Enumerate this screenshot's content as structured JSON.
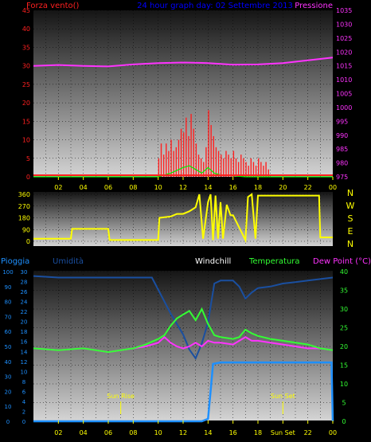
{
  "colors": {
    "background": "#000000",
    "wind": "#ff2020",
    "gust": "#00ee00",
    "pressure": "#ff33ff",
    "direction": "#ffff00",
    "humidity": "#1a4fa0",
    "windchill": "#ffffff",
    "temperature": "#33ff33",
    "dewpoint": "#ff33ff",
    "rain": "#1e90ff",
    "time_axis": "#ffff00",
    "title": "#0000ff"
  },
  "chart_data": [
    {
      "type": "bar",
      "title": "24 hour graph day: 02 Settembre 2013",
      "left_label": "Forza vento()",
      "right_label": "Pressione",
      "left_ticks": [
        "0",
        "5",
        "10",
        "15",
        "20",
        "25",
        "30",
        "35",
        "40",
        "45"
      ],
      "right_ticks": [
        "975",
        "980",
        "985",
        "990",
        "995",
        "1000",
        "1005",
        "1010",
        "1015",
        "1020",
        "1025",
        "1030",
        "1035"
      ],
      "x_ticks": [
        "02",
        "04",
        "06",
        "08",
        "10",
        "12",
        "14",
        "16",
        "18",
        "20",
        "22",
        "00"
      ],
      "ylim": [
        0,
        45
      ],
      "ylim_right": [
        975,
        1035
      ],
      "grid": true,
      "wind_bars": [
        [
          10.0,
          5
        ],
        [
          10.2,
          9
        ],
        [
          10.4,
          6
        ],
        [
          10.6,
          9
        ],
        [
          10.8,
          7
        ],
        [
          11.0,
          10
        ],
        [
          11.2,
          7
        ],
        [
          11.4,
          8
        ],
        [
          11.6,
          10
        ],
        [
          11.8,
          13
        ],
        [
          12.0,
          12
        ],
        [
          12.2,
          16
        ],
        [
          12.4,
          11
        ],
        [
          12.6,
          17
        ],
        [
          12.8,
          13
        ],
        [
          13.0,
          9
        ],
        [
          13.2,
          6
        ],
        [
          13.4,
          5
        ],
        [
          13.6,
          4
        ],
        [
          13.8,
          8
        ],
        [
          14.0,
          18
        ],
        [
          14.2,
          14
        ],
        [
          14.4,
          11
        ],
        [
          14.6,
          8
        ],
        [
          14.8,
          7
        ],
        [
          15.0,
          6
        ],
        [
          15.2,
          5
        ],
        [
          15.4,
          7
        ],
        [
          15.6,
          6
        ],
        [
          15.8,
          5
        ],
        [
          16.0,
          7
        ],
        [
          16.2,
          5
        ],
        [
          16.4,
          4
        ],
        [
          16.6,
          6
        ],
        [
          16.8,
          5
        ],
        [
          17.0,
          4
        ],
        [
          17.2,
          3
        ],
        [
          17.4,
          5
        ],
        [
          17.6,
          4
        ],
        [
          17.8,
          3
        ],
        [
          18.0,
          5
        ],
        [
          18.2,
          4
        ],
        [
          18.4,
          3
        ],
        [
          18.6,
          4
        ],
        [
          18.8,
          2
        ]
      ],
      "gust_line": {
        "x": [
          0,
          10,
          11,
          12,
          12.5,
          13,
          13.5,
          14,
          14.5,
          15,
          16,
          17,
          18,
          19,
          20,
          24
        ],
        "y": [
          0,
          0,
          1,
          2.5,
          3,
          2,
          1,
          2.5,
          1,
          0.5,
          0.3,
          0,
          0,
          0,
          0,
          0
        ]
      },
      "pressure_line": {
        "x": [
          0,
          2,
          4,
          6,
          8,
          10,
          12,
          14,
          16,
          18,
          20,
          22,
          24
        ],
        "y": [
          1015,
          1015.3,
          1015.0,
          1014.8,
          1015.5,
          1016.0,
          1016.2,
          1016.0,
          1015.4,
          1015.5,
          1016.0,
          1017.0,
          1018.0
        ]
      }
    },
    {
      "type": "line",
      "right_label_letters": [
        "N",
        "W",
        "S",
        "E",
        "N"
      ],
      "left_ticks": [
        "0",
        "90",
        "180",
        "270",
        "360"
      ],
      "ylim": [
        0,
        360
      ],
      "grid": true,
      "direction_line": {
        "x": [
          0,
          3,
          3.1,
          6,
          6.1,
          10,
          10.1,
          11,
          11.5,
          12,
          12.5,
          13,
          13.3,
          13.6,
          14,
          14.2,
          14.4,
          14.6,
          14.8,
          15,
          15.2,
          15.5,
          15.8,
          16,
          17,
          17.2,
          17.5,
          17.8,
          18,
          18.2,
          22.9,
          23,
          24
        ],
        "y": [
          20,
          20,
          95,
          95,
          10,
          10,
          180,
          190,
          210,
          210,
          230,
          260,
          360,
          20,
          300,
          360,
          10,
          350,
          20,
          300,
          20,
          280,
          200,
          200,
          10,
          340,
          360,
          20,
          350,
          350,
          350,
          30,
          30
        ]
      }
    },
    {
      "type": "line",
      "left_label": "Pioggia",
      "left2_label": "Umidità",
      "windchill_label": "Windchill",
      "temperature_label": "Temperatura",
      "dewpoint_label": "Dew Point (°C)",
      "humidity_ticks": [
        "0",
        "10",
        "20",
        "30",
        "40",
        "50",
        "60",
        "70",
        "80",
        "90",
        "100"
      ],
      "rain_ticks": [
        "0",
        "2",
        "4",
        "6",
        "8",
        "10",
        "12",
        "14",
        "16",
        "18",
        "20",
        "22",
        "24",
        "26",
        "28",
        "30"
      ],
      "temp_ticks": [
        "0",
        "5",
        "10",
        "15",
        "20",
        "25",
        "30",
        "35",
        "40"
      ],
      "x_ticks": [
        "02",
        "04",
        "06",
        "08",
        "10",
        "12",
        "14",
        "16",
        "18",
        "20",
        "22",
        "00"
      ],
      "sun_rise_label": "Sun Rise",
      "sun_set_label": "Sun Set",
      "sunrise_hour": 7,
      "sunset_hour": 20,
      "grid": true,
      "humidity_line": {
        "x": [
          0,
          2,
          4,
          6,
          8,
          9.5,
          10,
          11,
          12,
          12.5,
          13,
          13.5,
          14,
          14.5,
          15,
          16,
          16.5,
          17,
          17.5,
          18,
          19,
          20,
          21,
          22,
          24
        ],
        "y": [
          97,
          96,
          96,
          96,
          96,
          96,
          88,
          72,
          58,
          48,
          42,
          52,
          66,
          92,
          94,
          94,
          90,
          82,
          86,
          89,
          90,
          92,
          93,
          94,
          96
        ]
      },
      "temperature_line": {
        "x": [
          0,
          2,
          4,
          6,
          8,
          9,
          10,
          10.5,
          11,
          11.5,
          12,
          12.5,
          13,
          13.5,
          14,
          14.5,
          15,
          16,
          16.5,
          17,
          17.5,
          18,
          19,
          20,
          21,
          22,
          23,
          24
        ],
        "y": [
          19.5,
          19,
          19.5,
          18.5,
          19.5,
          20.5,
          22,
          23,
          25.5,
          27.5,
          28.5,
          29.5,
          27,
          30,
          26,
          23,
          22.5,
          22,
          22.5,
          24.5,
          23.5,
          22.8,
          22,
          21.5,
          21,
          20.5,
          19.5,
          19
        ]
      },
      "dewpoint_line": {
        "x": [
          0,
          2,
          4,
          6,
          8,
          9,
          10,
          10.5,
          11,
          11.5,
          12,
          12.5,
          13,
          13.5,
          14,
          14.5,
          15,
          16,
          16.5,
          17,
          17.5,
          18,
          19,
          20,
          21,
          22,
          23,
          24
        ],
        "y": [
          19.5,
          19,
          19.5,
          18.5,
          19.5,
          20,
          21,
          22.5,
          21,
          20,
          19.5,
          20,
          21,
          20,
          21.5,
          21,
          21,
          20.5,
          21.5,
          22.5,
          21.5,
          21.5,
          21,
          20.5,
          20,
          19.5,
          19.5,
          19
        ]
      },
      "rain_line": {
        "x": [
          0,
          12,
          13.5,
          14,
          14.2,
          14.4,
          15,
          16,
          20,
          23.5,
          23.9,
          24
        ],
        "y": [
          0,
          0,
          0,
          0.5,
          6,
          11.5,
          11.8,
          11.8,
          11.8,
          11.8,
          11.8,
          0
        ]
      }
    }
  ]
}
